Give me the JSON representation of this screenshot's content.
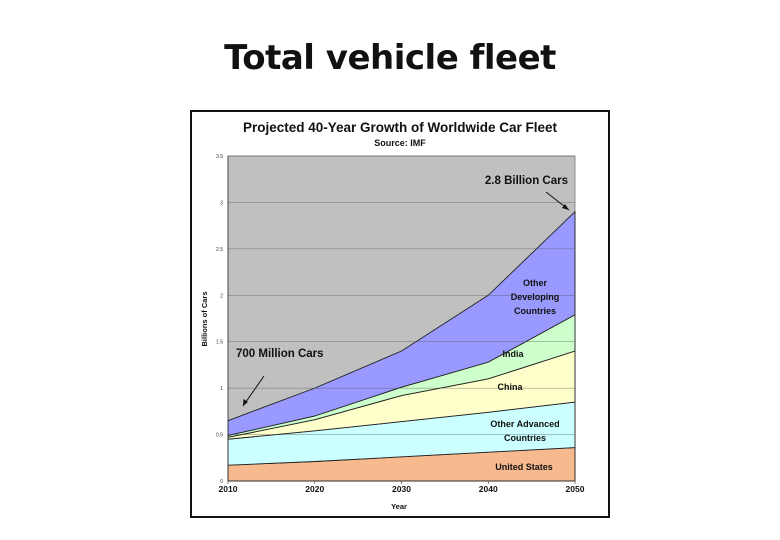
{
  "slide": {
    "title": "Total vehicle fleet"
  },
  "chart_data": {
    "type": "area",
    "stacked": true,
    "title": "Projected 40-Year Growth of Worldwide Car Fleet",
    "subtitle": "Source: IMF",
    "xlabel": "Year",
    "ylabel": "Billions of Cars",
    "x": [
      2010,
      2020,
      2030,
      2040,
      2050
    ],
    "x_ticks": [
      "2010",
      "2020",
      "2030",
      "2040",
      "2050"
    ],
    "y_ticks": [
      "0",
      "0.5",
      "1",
      "1.5",
      "2",
      "2.5",
      "3",
      "3.5"
    ],
    "ylim": [
      0,
      3.5
    ],
    "xlim": [
      2010,
      2050
    ],
    "grid": true,
    "series": [
      {
        "name": "United States",
        "color": "#f7b98e",
        "values": [
          0.17,
          0.21,
          0.26,
          0.31,
          0.36
        ]
      },
      {
        "name": "Other Advanced Countries",
        "color": "#ccffff",
        "values": [
          0.28,
          0.33,
          0.38,
          0.43,
          0.49
        ]
      },
      {
        "name": "China",
        "color": "#ffffcc",
        "values": [
          0.02,
          0.12,
          0.28,
          0.36,
          0.55
        ]
      },
      {
        "name": "India",
        "color": "#ccffcc",
        "values": [
          0.02,
          0.04,
          0.09,
          0.18,
          0.39
        ]
      },
      {
        "name": "Other Developing Countries",
        "color": "#9999ff",
        "values": [
          0.16,
          0.3,
          0.39,
          0.72,
          1.11
        ]
      }
    ],
    "annotations": [
      {
        "text": "700 Million Cars"
      },
      {
        "text": "2.8 Billion Cars"
      }
    ]
  }
}
